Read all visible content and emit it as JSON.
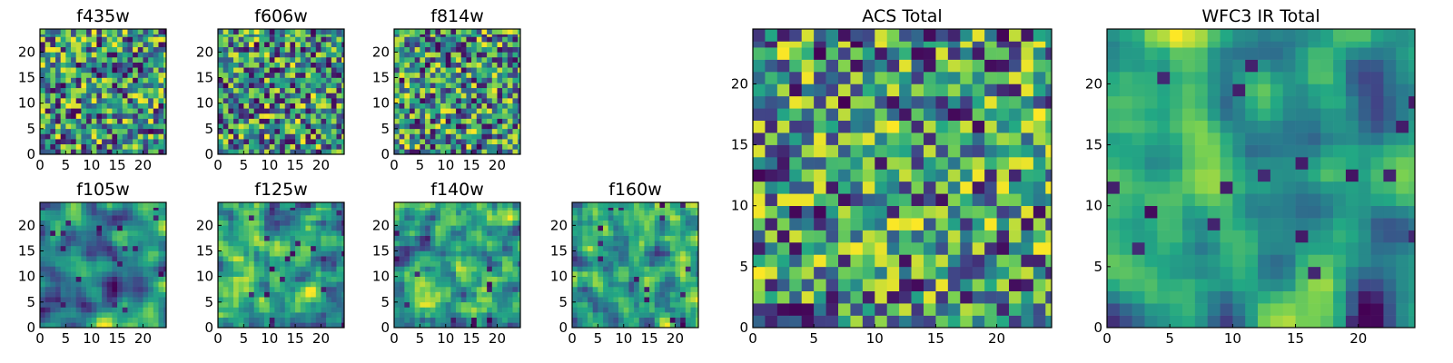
{
  "figure": {
    "colormap": "viridis",
    "colormap_stops": [
      "#440154",
      "#414487",
      "#2a788e",
      "#22a884",
      "#7ad151",
      "#fde725"
    ],
    "background": "#ffffff"
  },
  "chart_data": [
    {
      "type": "heatmap",
      "title": "f435w",
      "grid_size": 25,
      "color_range": [
        0,
        1
      ],
      "seed": 11,
      "smooth": 0,
      "bias": 0.56,
      "xticks": [
        "0",
        "5",
        "10",
        "15",
        "20"
      ],
      "yticks": [
        "0",
        "5",
        "10",
        "15",
        "20"
      ]
    },
    {
      "type": "heatmap",
      "title": "f606w",
      "grid_size": 25,
      "color_range": [
        0,
        1
      ],
      "seed": 23,
      "smooth": 0,
      "bias": 0.57,
      "xticks": [
        "0",
        "5",
        "10",
        "15",
        "20"
      ],
      "yticks": [
        "0",
        "5",
        "10",
        "15",
        "20"
      ]
    },
    {
      "type": "heatmap",
      "title": "f814w",
      "grid_size": 25,
      "color_range": [
        0,
        1
      ],
      "seed": 37,
      "smooth": 0,
      "bias": 0.58,
      "xticks": [
        "0",
        "5",
        "10",
        "15",
        "20"
      ],
      "yticks": [
        "0",
        "5",
        "10",
        "15",
        "20"
      ]
    },
    {
      "type": "heatmap",
      "title": "f105w",
      "grid_size": 25,
      "color_range": [
        0,
        1
      ],
      "seed": 41,
      "smooth": 2,
      "bias": 0.55,
      "xticks": [
        "0",
        "5",
        "10",
        "15",
        "20"
      ],
      "yticks": [
        "0",
        "5",
        "10",
        "15",
        "20"
      ]
    },
    {
      "type": "heatmap",
      "title": "f125w",
      "grid_size": 25,
      "color_range": [
        0,
        1
      ],
      "seed": 53,
      "smooth": 1,
      "bias": 0.62,
      "xticks": [
        "0",
        "5",
        "10",
        "15",
        "20"
      ],
      "yticks": [
        "0",
        "5",
        "10",
        "15",
        "20"
      ]
    },
    {
      "type": "heatmap",
      "title": "f140w",
      "grid_size": 25,
      "color_range": [
        0,
        1
      ],
      "seed": 67,
      "smooth": 1,
      "bias": 0.65,
      "xticks": [
        "0",
        "5",
        "10",
        "15",
        "20"
      ],
      "yticks": [
        "0",
        "5",
        "10",
        "15",
        "20"
      ]
    },
    {
      "type": "heatmap",
      "title": "f160w",
      "grid_size": 25,
      "color_range": [
        0,
        1
      ],
      "seed": 79,
      "smooth": 1,
      "bias": 0.64,
      "xticks": [
        "0",
        "5",
        "10",
        "15",
        "20"
      ],
      "yticks": [
        "0",
        "5",
        "10",
        "15",
        "20"
      ]
    },
    {
      "type": "heatmap",
      "title": "ACS Total",
      "grid_size": 25,
      "color_range": [
        0,
        1
      ],
      "seed": 97,
      "smooth": 0,
      "bias": 0.63,
      "xticks": [
        "0",
        "5",
        "10",
        "15",
        "20"
      ],
      "yticks": [
        "0",
        "5",
        "10",
        "15",
        "20"
      ]
    },
    {
      "type": "heatmap",
      "title": "WFC3 IR Total",
      "grid_size": 25,
      "color_range": [
        0,
        1
      ],
      "seed": 131,
      "smooth": 2,
      "bias": 0.62,
      "xticks": [
        "0",
        "5",
        "10",
        "15",
        "20"
      ],
      "yticks": [
        "0",
        "5",
        "10",
        "15",
        "20"
      ]
    }
  ]
}
